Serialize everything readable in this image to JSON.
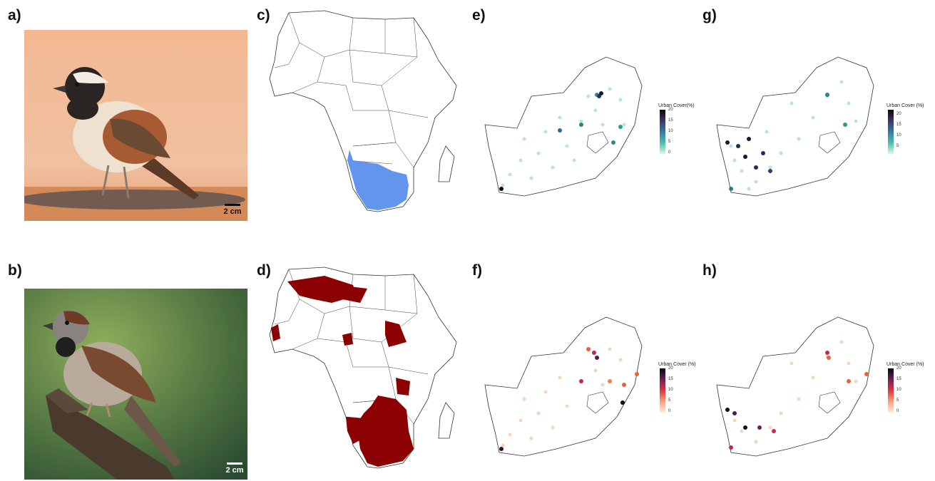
{
  "panels": {
    "a": {
      "label": "a)",
      "scale_text": "2 cm",
      "scale_color": "#111111"
    },
    "b": {
      "label": "b)",
      "scale_text": "2 cm",
      "scale_color": "#ffffff"
    },
    "c": {
      "label": "c)",
      "fill": "#6495ED"
    },
    "d": {
      "label": "d)",
      "fill": "#8B0000"
    },
    "e": {
      "label": "e)"
    },
    "f": {
      "label": "f)"
    },
    "g": {
      "label": "g)"
    },
    "h": {
      "label": "h)"
    }
  },
  "legends": {
    "e": {
      "title": "Urban Cover(%)",
      "ticks": [
        "20",
        "15",
        "10",
        "5",
        "0"
      ],
      "palette": "mako"
    },
    "g": {
      "title": "Urban Cover (%)",
      "ticks": [
        "20",
        "15",
        "10",
        "5"
      ],
      "palette": "mako"
    },
    "f": {
      "title": "Urban Cover (%)",
      "ticks": [
        "20",
        "15",
        "10",
        "5",
        "0"
      ],
      "palette": "rocket"
    },
    "h": {
      "title": "Urban Cover (%)",
      "ticks": [
        "20",
        "15",
        "10",
        "5",
        "0"
      ],
      "palette": "rocket"
    }
  }
}
